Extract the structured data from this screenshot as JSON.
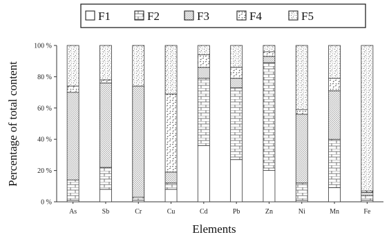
{
  "chart_data": {
    "type": "bar",
    "stacked": true,
    "normalized": true,
    "title": "",
    "xlabel": "Elements",
    "ylabel": "Percentage of total content",
    "ylim": [
      0,
      100
    ],
    "yticks": [
      "0 %",
      "20 %",
      "40 %",
      "60 %",
      "80 %",
      "100 %"
    ],
    "grid": false,
    "legend": "top",
    "categories": [
      "As",
      "Sb",
      "Cr",
      "Cu",
      "Cd",
      "Pb",
      "Zn",
      "Ni",
      "Mn",
      "Fe"
    ],
    "series": [
      {
        "name": "F1",
        "pattern": "blank",
        "values": [
          1,
          8,
          1,
          8,
          36,
          27,
          20,
          1,
          9,
          1
        ]
      },
      {
        "name": "F2",
        "pattern": "brick",
        "values": [
          13,
          14,
          2,
          4,
          43,
          46,
          69,
          11,
          31,
          3
        ]
      },
      {
        "name": "F3",
        "pattern": "fine-dot",
        "values": [
          56,
          54,
          71,
          7,
          7,
          6,
          4,
          44,
          31,
          2
        ]
      },
      {
        "name": "F4",
        "pattern": "dash",
        "values": [
          4,
          2,
          0,
          50,
          8,
          7,
          3,
          3,
          8,
          1
        ]
      },
      {
        "name": "F5",
        "pattern": "speckle",
        "values": [
          26,
          22,
          26,
          31,
          6,
          14,
          4,
          41,
          21,
          93
        ]
      }
    ]
  }
}
